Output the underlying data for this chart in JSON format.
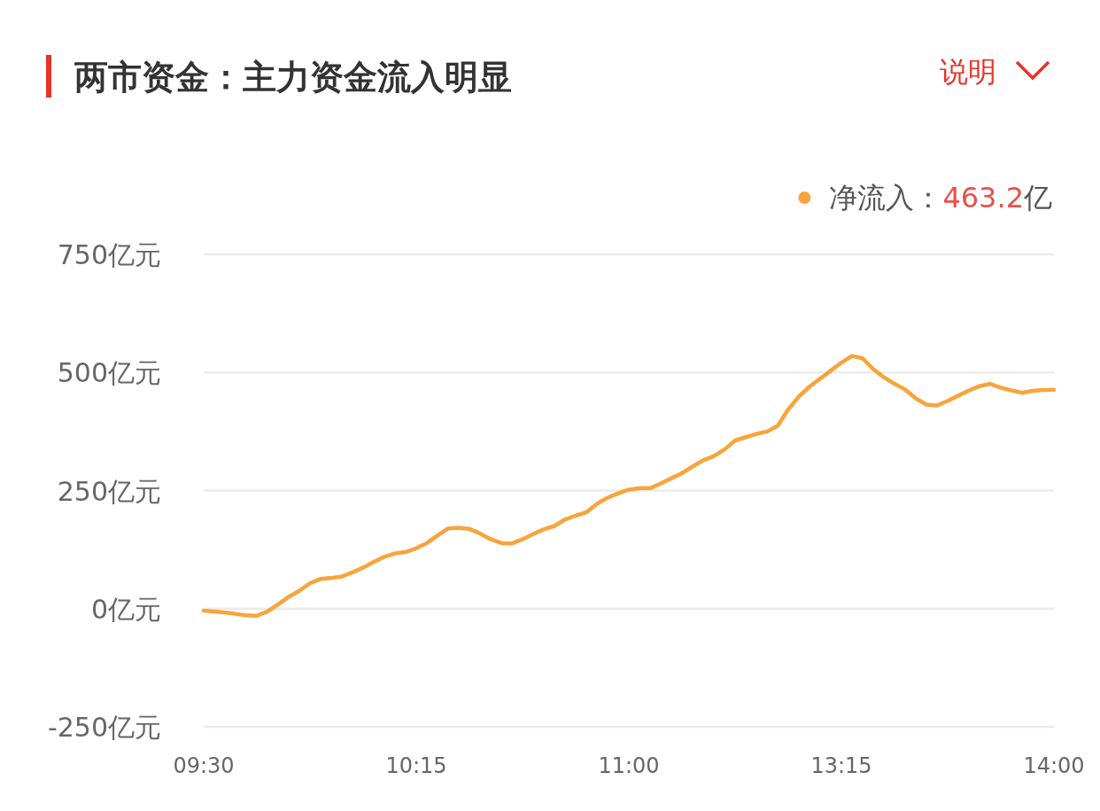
{
  "chart_data": {
    "type": "line",
    "title": "两市资金：主力资金流入明显",
    "annotations": [
      "说明",
      "463.2亿"
    ],
    "categories": [
      "09:30",
      null,
      null,
      null,
      null,
      null,
      null,
      null,
      null,
      null,
      null,
      null,
      null,
      null,
      null,
      null,
      null,
      null,
      null,
      null,
      "10:15",
      null,
      null,
      null,
      null,
      null,
      null,
      null,
      null,
      null,
      null,
      null,
      null,
      null,
      null,
      null,
      null,
      null,
      null,
      null,
      "11:00",
      null,
      null,
      null,
      null,
      null,
      null,
      null,
      null,
      null,
      null,
      null,
      null,
      null,
      null,
      null,
      null,
      null,
      null,
      null,
      "13:15",
      null,
      null,
      null,
      null,
      null,
      null,
      null,
      null,
      null,
      null,
      null,
      null,
      null,
      null,
      null,
      null,
      null,
      null,
      null,
      "14:00"
    ],
    "series": [
      {
        "name": "净流入：",
        "color": "#f9a43a",
        "values": [
          -4,
          -6,
          -8,
          -11,
          -14,
          -15,
          -6,
          9,
          25,
          38,
          54,
          63,
          65,
          68,
          77,
          87,
          99,
          110,
          117,
          120,
          128,
          139,
          155,
          170,
          171,
          169,
          159,
          147,
          139,
          138,
          147,
          158,
          168,
          175,
          189,
          197,
          204,
          222,
          235,
          244,
          252,
          255,
          255,
          265,
          276,
          287,
          301,
          314,
          323,
          337,
          356,
          363,
          370,
          375,
          387,
          422,
          449,
          470,
          487,
          504,
          521,
          535,
          530,
          507,
          490,
          476,
          464,
          445,
          432,
          430,
          440,
          451,
          462,
          471,
          476,
          468,
          462,
          457,
          461,
          463,
          463.2
        ]
      }
    ],
    "ylim": [
      -250,
      750
    ],
    "yticks": [
      {
        "value": -250,
        "label": "-250亿元"
      },
      {
        "value": 0,
        "label": "0亿元"
      },
      {
        "value": 250,
        "label": "250亿元"
      },
      {
        "value": 500,
        "label": "500亿元"
      },
      {
        "value": 750,
        "label": "750亿元"
      }
    ],
    "grid": "y",
    "legend": "top right"
  }
}
